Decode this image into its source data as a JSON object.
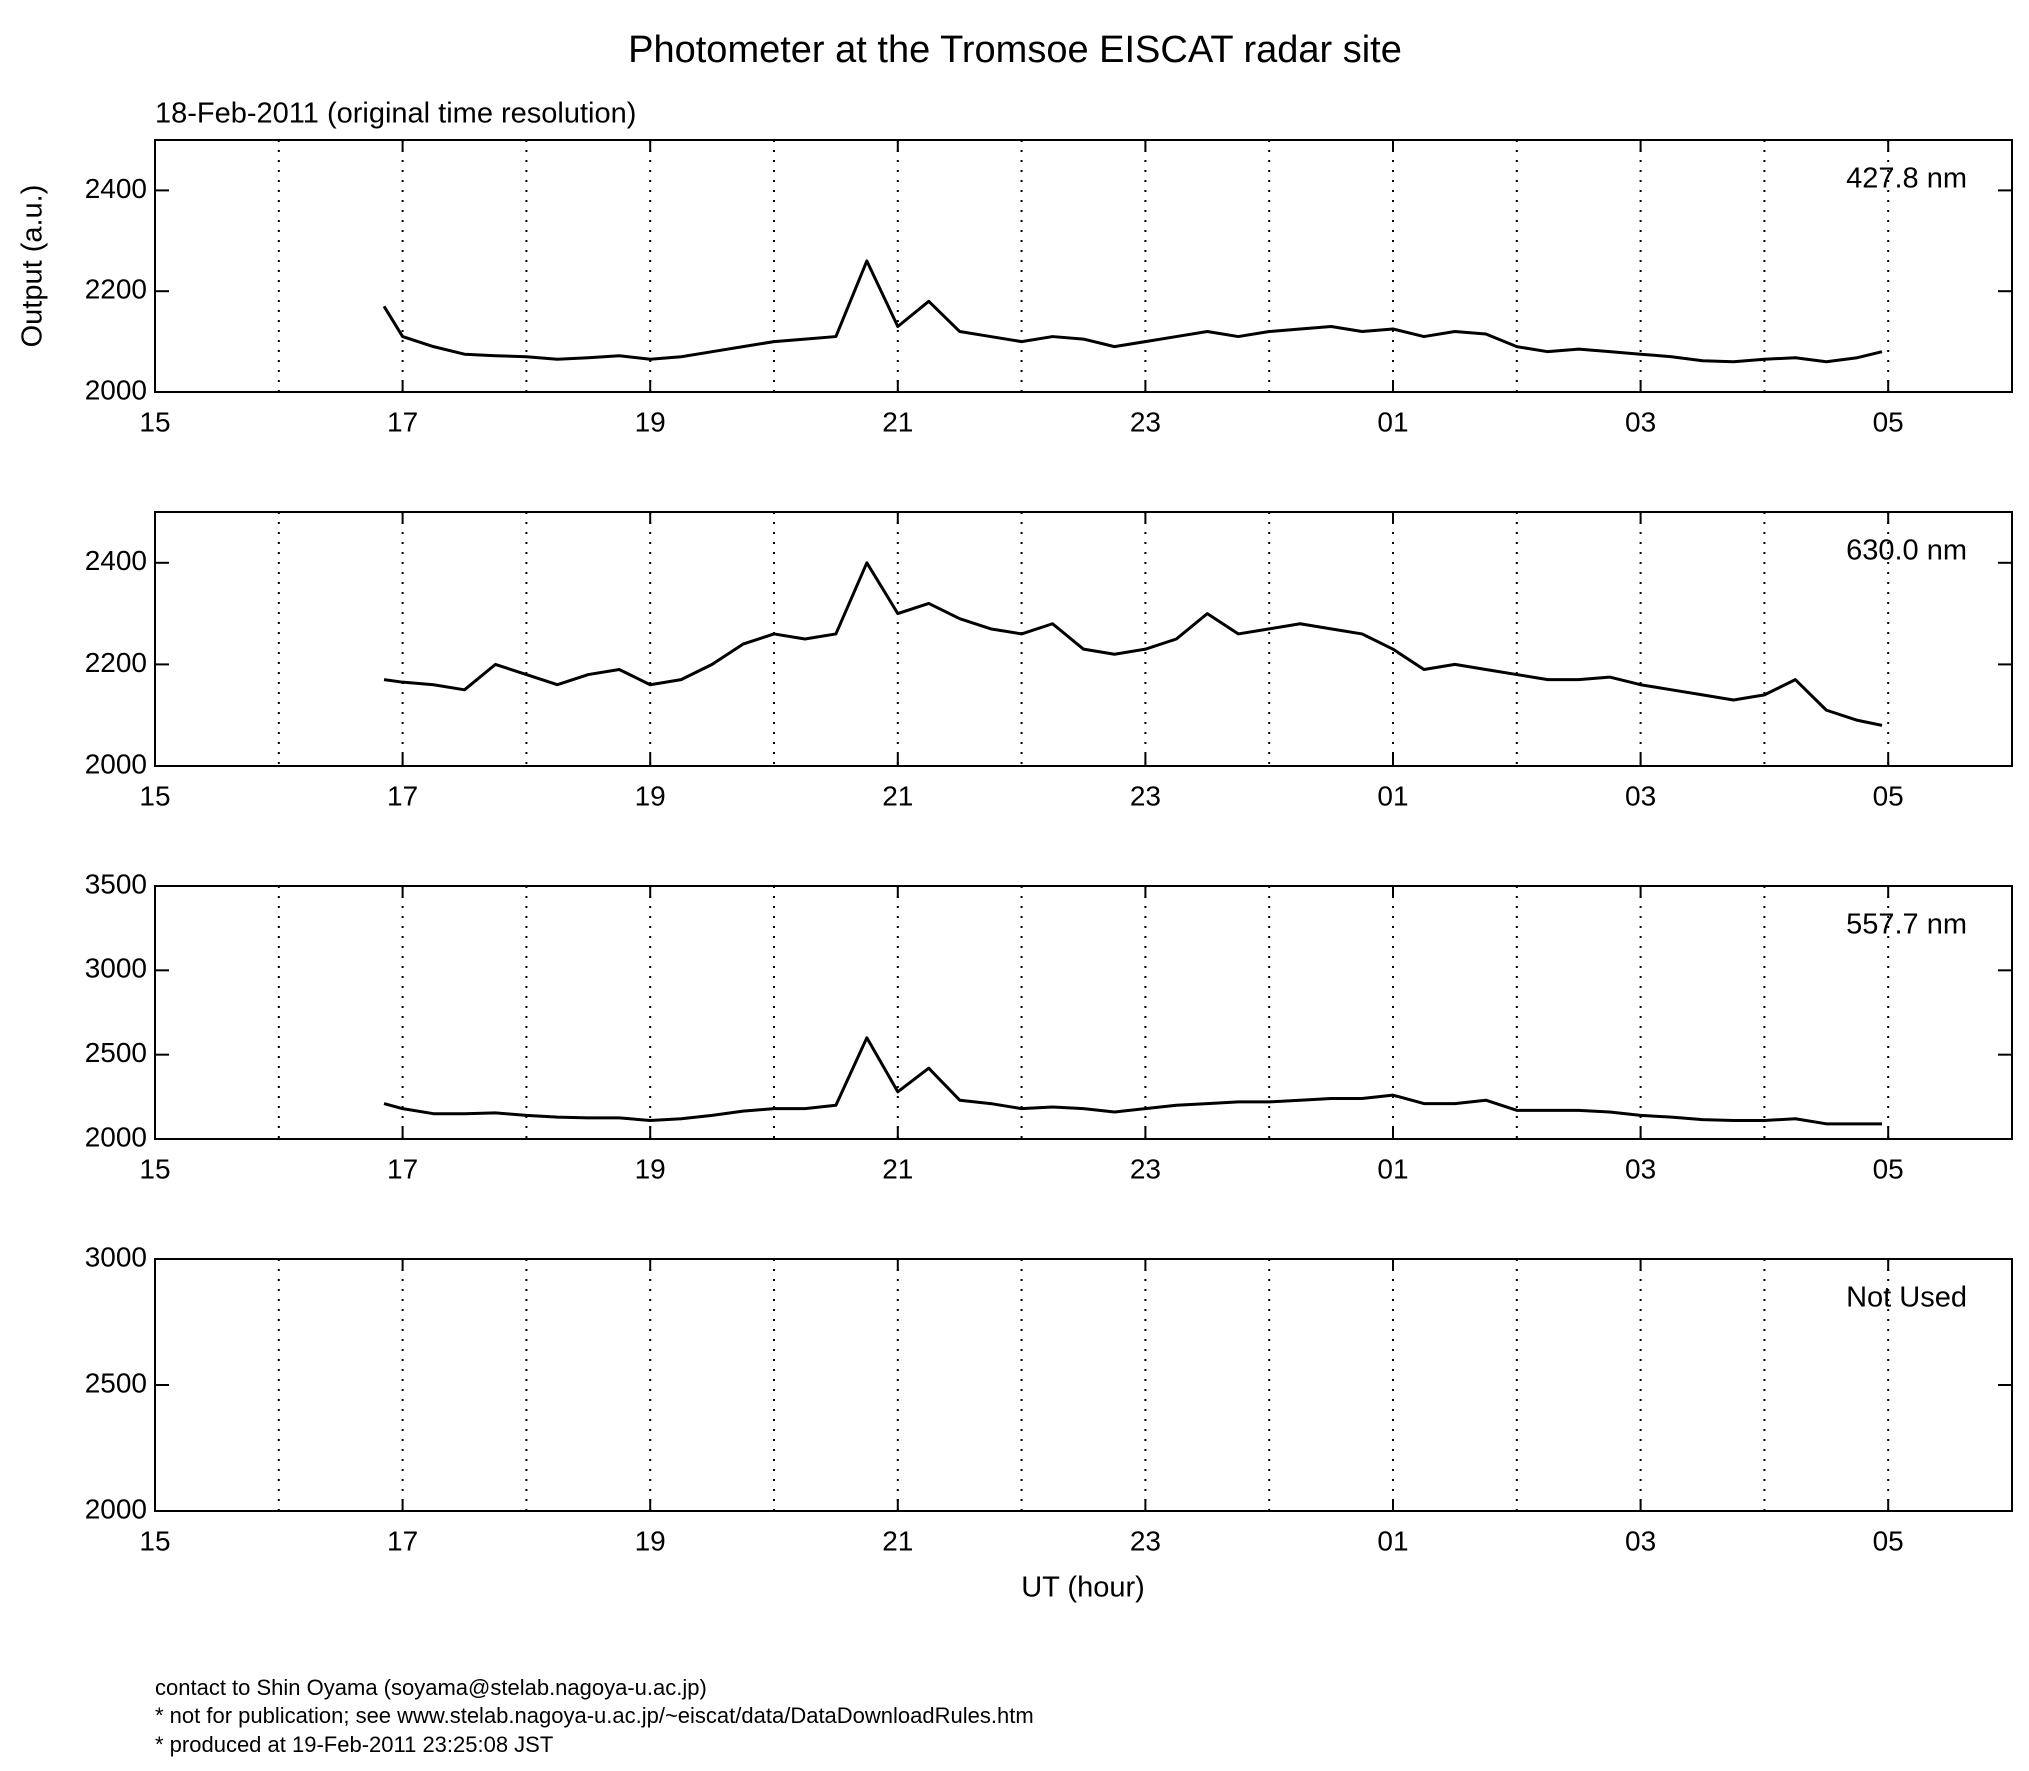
{
  "chart_data": [
    {
      "type": "line",
      "title": "Photometer at the Tromsoe EISCAT radar site",
      "subtitle": "18-Feb-2011 (original time resolution)",
      "y_label": "Output (a.u.)",
      "annotation": "427.8 nm",
      "xlim": [
        15,
        30
      ],
      "xticks": [
        15,
        17,
        19,
        21,
        23,
        {
          "value": 25,
          "label": "01"
        },
        {
          "value": 27,
          "label": "03"
        },
        {
          "value": 29,
          "label": "05"
        }
      ],
      "xgrid": [
        16,
        17,
        18,
        19,
        20,
        21,
        22,
        23,
        24,
        25,
        26,
        27,
        28,
        29
      ],
      "ylim": [
        2000,
        2500
      ],
      "yticks": [
        2000,
        2200,
        2400
      ],
      "x": [
        16.85,
        17,
        17.25,
        17.5,
        17.75,
        18,
        18.25,
        18.5,
        18.75,
        19,
        19.25,
        19.5,
        19.75,
        20,
        20.25,
        20.5,
        20.75,
        21,
        21.25,
        21.5,
        21.75,
        22,
        22.25,
        22.5,
        22.75,
        23,
        23.25,
        23.5,
        23.75,
        24,
        24.25,
        24.5,
        24.75,
        25,
        25.25,
        25.5,
        25.75,
        26,
        26.25,
        26.5,
        26.75,
        27,
        27.25,
        27.5,
        27.75,
        28,
        28.25,
        28.5,
        28.75,
        28.95
      ],
      "series": [
        {
          "name": "427.8 nm",
          "color": "#000000",
          "values": [
            2170,
            2110,
            2090,
            2075,
            2072,
            2070,
            2065,
            2068,
            2072,
            2065,
            2070,
            2080,
            2090,
            2100,
            2105,
            2110,
            2260,
            2130,
            2180,
            2120,
            2110,
            2100,
            2110,
            2105,
            2090,
            2100,
            2110,
            2120,
            2110,
            2120,
            2125,
            2130,
            2120,
            2125,
            2110,
            2120,
            2115,
            2090,
            2080,
            2085,
            2080,
            2075,
            2070,
            2062,
            2060,
            2065,
            2068,
            2060,
            2068,
            2080
          ]
        }
      ]
    },
    {
      "type": "line",
      "annotation": "630.0 nm",
      "xlim": [
        15,
        30
      ],
      "xticks": [
        15,
        17,
        19,
        21,
        23,
        {
          "value": 25,
          "label": "01"
        },
        {
          "value": 27,
          "label": "03"
        },
        {
          "value": 29,
          "label": "05"
        }
      ],
      "xgrid": [
        16,
        17,
        18,
        19,
        20,
        21,
        22,
        23,
        24,
        25,
        26,
        27,
        28,
        29
      ],
      "ylim": [
        2000,
        2500
      ],
      "yticks": [
        2000,
        2200,
        2400
      ],
      "x": [
        16.85,
        17,
        17.25,
        17.5,
        17.75,
        18,
        18.25,
        18.5,
        18.75,
        19,
        19.25,
        19.5,
        19.75,
        20,
        20.25,
        20.5,
        20.75,
        21,
        21.25,
        21.5,
        21.75,
        22,
        22.25,
        22.5,
        22.75,
        23,
        23.25,
        23.5,
        23.75,
        24,
        24.25,
        24.5,
        24.75,
        25,
        25.25,
        25.5,
        25.75,
        26,
        26.25,
        26.5,
        26.75,
        27,
        27.25,
        27.5,
        27.75,
        28,
        28.25,
        28.5,
        28.75,
        28.95
      ],
      "series": [
        {
          "name": "630.0 nm",
          "color": "#000000",
          "values": [
            2170,
            2165,
            2160,
            2150,
            2200,
            2180,
            2160,
            2180,
            2190,
            2160,
            2170,
            2200,
            2240,
            2260,
            2250,
            2260,
            2400,
            2300,
            2320,
            2290,
            2270,
            2260,
            2280,
            2230,
            2220,
            2230,
            2250,
            2300,
            2260,
            2270,
            2280,
            2270,
            2260,
            2230,
            2190,
            2200,
            2190,
            2180,
            2170,
            2170,
            2175,
            2160,
            2150,
            2140,
            2130,
            2140,
            2170,
            2110,
            2090,
            2080
          ]
        }
      ]
    },
    {
      "type": "line",
      "annotation": "557.7 nm",
      "xlim": [
        15,
        30
      ],
      "xticks": [
        15,
        17,
        19,
        21,
        23,
        {
          "value": 25,
          "label": "01"
        },
        {
          "value": 27,
          "label": "03"
        },
        {
          "value": 29,
          "label": "05"
        }
      ],
      "xgrid": [
        16,
        17,
        18,
        19,
        20,
        21,
        22,
        23,
        24,
        25,
        26,
        27,
        28,
        29
      ],
      "ylim": [
        2000,
        3500
      ],
      "yticks": [
        2000,
        2500,
        3000,
        3500
      ],
      "x": [
        16.85,
        17,
        17.25,
        17.5,
        17.75,
        18,
        18.25,
        18.5,
        18.75,
        19,
        19.25,
        19.5,
        19.75,
        20,
        20.25,
        20.5,
        20.75,
        21,
        21.25,
        21.5,
        21.75,
        22,
        22.25,
        22.5,
        22.75,
        23,
        23.25,
        23.5,
        23.75,
        24,
        24.25,
        24.5,
        24.75,
        25,
        25.25,
        25.5,
        25.75,
        26,
        26.25,
        26.5,
        26.75,
        27,
        27.25,
        27.5,
        27.75,
        28,
        28.25,
        28.5,
        28.75,
        28.95
      ],
      "series": [
        {
          "name": "557.7 nm",
          "color": "#000000",
          "values": [
            2210,
            2180,
            2150,
            2150,
            2155,
            2140,
            2130,
            2125,
            2125,
            2110,
            2120,
            2140,
            2165,
            2180,
            2180,
            2200,
            2600,
            2280,
            2420,
            2230,
            2210,
            2180,
            2190,
            2180,
            2160,
            2180,
            2200,
            2210,
            2220,
            2220,
            2230,
            2240,
            2240,
            2260,
            2210,
            2210,
            2230,
            2170,
            2170,
            2170,
            2160,
            2140,
            2130,
            2115,
            2110,
            2110,
            2120,
            2090,
            2090,
            2090
          ]
        }
      ]
    },
    {
      "type": "line",
      "annotation": "Not Used",
      "x_label": "UT (hour)",
      "xlim": [
        15,
        30
      ],
      "xticks": [
        15,
        17,
        19,
        21,
        23,
        {
          "value": 25,
          "label": "01"
        },
        {
          "value": 27,
          "label": "03"
        },
        {
          "value": 29,
          "label": "05"
        }
      ],
      "xgrid": [
        16,
        17,
        18,
        19,
        20,
        21,
        22,
        23,
        24,
        25,
        26,
        27,
        28,
        29
      ],
      "ylim": [
        2000,
        3000
      ],
      "yticks": [
        2000,
        2500,
        3000
      ],
      "series": []
    }
  ],
  "footer": [
    "contact to Shin Oyama (soyama@stelab.nagoya-u.ac.jp)",
    "* not for publication; see www.stelab.nagoya-u.ac.jp/~eiscat/data/DataDownloadRules.htm",
    "* produced at 19-Feb-2011 23:25:08 JST"
  ]
}
